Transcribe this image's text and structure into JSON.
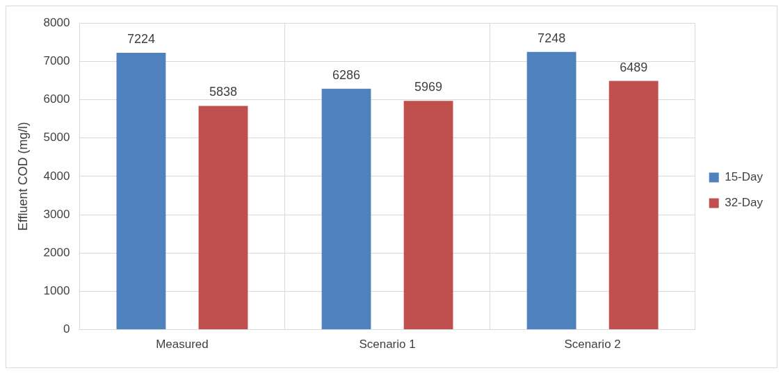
{
  "chart_data": {
    "type": "bar",
    "ylabel": "Effluent COD (mg/l)",
    "categories": [
      "Measured",
      "Scenario 1",
      "Scenario 2"
    ],
    "series": [
      {
        "name": "15-Day",
        "color": "#4f81bd",
        "values": [
          7224,
          6286,
          7248
        ]
      },
      {
        "name": "32-Day",
        "color": "#c0504d",
        "values": [
          5838,
          5969,
          6489
        ]
      }
    ],
    "ylim": [
      0,
      8000
    ],
    "yticks": [
      0,
      1000,
      2000,
      3000,
      4000,
      5000,
      6000,
      7000,
      8000
    ],
    "grid": true,
    "legend": "right",
    "data_labels": true
  }
}
